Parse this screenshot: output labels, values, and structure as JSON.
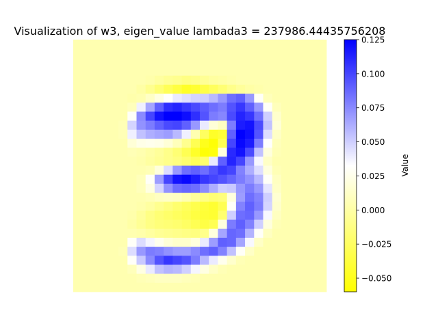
{
  "chart_data": {
    "type": "heatmap",
    "title": "Visualization of w3, eigen_value lambada3 = 237986.44435756208",
    "colorbar": {
      "label": "Value",
      "vmin": -0.06,
      "vmax": 0.125,
      "ticks": [
        -0.05,
        -0.025,
        0.0,
        0.025,
        0.05,
        0.075,
        0.1,
        0.125
      ],
      "tick_labels": [
        "−0.050",
        "−0.025",
        "0.000",
        "0.025",
        "0.050",
        "0.075",
        "0.100",
        "0.125"
      ],
      "colors": [
        "#ffff00",
        "#ffffff",
        "#0000ff"
      ]
    },
    "axes_visible": false,
    "grid": false,
    "rows": 28,
    "cols": 28,
    "values": [
      [
        0.004,
        0.004,
        0.004,
        0.004,
        0.004,
        0.004,
        0.004,
        0.004,
        0.004,
        0.004,
        0.004,
        0.004,
        0.004,
        0.004,
        0.004,
        0.004,
        0.004,
        0.004,
        0.004,
        0.004,
        0.004,
        0.004,
        0.004,
        0.004,
        0.004,
        0.004,
        0.004,
        0.004
      ],
      [
        0.004,
        0.004,
        0.004,
        0.004,
        0.004,
        0.004,
        0.004,
        0.004,
        0.004,
        0.004,
        0.004,
        0.004,
        0.004,
        0.004,
        0.004,
        0.004,
        0.004,
        0.004,
        0.004,
        0.004,
        0.004,
        0.004,
        0.004,
        0.004,
        0.004,
        0.004,
        0.004,
        0.004
      ],
      [
        0.004,
        0.004,
        0.004,
        0.004,
        0.004,
        0.004,
        0.004,
        0.004,
        0.004,
        0.004,
        0.004,
        0.004,
        0.004,
        0.004,
        0.004,
        0.004,
        0.004,
        0.004,
        0.004,
        0.004,
        0.004,
        0.004,
        0.004,
        0.004,
        0.004,
        0.004,
        0.004,
        0.004
      ],
      [
        0.004,
        0.004,
        0.004,
        0.004,
        0.004,
        0.004,
        0.004,
        0.004,
        0.004,
        0.004,
        0.004,
        0.004,
        0.004,
        0.004,
        0.004,
        0.004,
        0.004,
        0.004,
        0.004,
        0.004,
        0.004,
        0.004,
        0.004,
        0.004,
        0.004,
        0.004,
        0.004,
        0.004
      ],
      [
        0.004,
        0.004,
        0.004,
        0.004,
        0.004,
        0.004,
        0.004,
        0.004,
        0.002,
        -0.002,
        -0.006,
        -0.008,
        -0.012,
        -0.01,
        -0.006,
        -0.002,
        0.0,
        0.002,
        0.004,
        0.004,
        0.004,
        0.004,
        0.004,
        0.004,
        0.004,
        0.004,
        0.004,
        0.004
      ],
      [
        0.004,
        0.004,
        0.004,
        0.004,
        0.004,
        0.004,
        0.004,
        0.0,
        -0.008,
        -0.018,
        -0.028,
        -0.036,
        -0.045,
        -0.042,
        -0.034,
        -0.026,
        -0.018,
        -0.01,
        -0.004,
        0.0,
        0.002,
        0.004,
        0.004,
        0.004,
        0.004,
        0.004,
        0.004,
        0.004
      ],
      [
        0.004,
        0.004,
        0.004,
        0.004,
        0.004,
        0.004,
        0.002,
        0.004,
        0.012,
        0.022,
        0.032,
        0.04,
        0.044,
        0.048,
        0.05,
        0.058,
        0.07,
        0.085,
        0.09,
        0.07,
        0.03,
        0.008,
        0.004,
        0.004,
        0.004,
        0.004,
        0.004,
        0.004
      ],
      [
        0.004,
        0.004,
        0.004,
        0.004,
        0.004,
        0.004,
        0.008,
        0.038,
        0.065,
        0.09,
        0.108,
        0.112,
        0.105,
        0.098,
        0.092,
        0.085,
        0.08,
        0.095,
        0.105,
        0.09,
        0.07,
        0.03,
        0.008,
        0.004,
        0.004,
        0.004,
        0.004,
        0.004
      ],
      [
        0.004,
        0.004,
        0.004,
        0.004,
        0.004,
        0.004,
        0.03,
        0.075,
        0.1,
        0.118,
        0.125,
        0.125,
        0.12,
        0.108,
        0.095,
        0.08,
        0.076,
        0.098,
        0.112,
        0.105,
        0.085,
        0.05,
        0.014,
        0.004,
        0.004,
        0.004,
        0.004,
        0.004
      ],
      [
        0.004,
        0.004,
        0.004,
        0.004,
        0.004,
        0.006,
        0.048,
        0.072,
        0.08,
        0.09,
        0.098,
        0.1,
        0.09,
        0.07,
        0.04,
        0.018,
        0.01,
        0.08,
        0.115,
        0.118,
        0.098,
        0.055,
        0.018,
        0.004,
        0.004,
        0.004,
        0.004,
        0.004
      ],
      [
        0.004,
        0.004,
        0.004,
        0.004,
        0.004,
        0.006,
        0.038,
        0.055,
        0.062,
        0.065,
        0.068,
        0.058,
        0.038,
        0.004,
        -0.025,
        -0.045,
        -0.04,
        0.09,
        0.125,
        0.12,
        0.095,
        0.045,
        0.012,
        0.004,
        0.004,
        0.004,
        0.004,
        0.004
      ],
      [
        0.004,
        0.004,
        0.004,
        0.004,
        0.004,
        0.004,
        0.018,
        0.024,
        0.026,
        0.024,
        0.018,
        0.008,
        -0.008,
        -0.03,
        -0.05,
        -0.058,
        -0.03,
        0.1,
        0.122,
        0.115,
        0.08,
        0.032,
        0.008,
        0.004,
        0.004,
        0.004,
        0.004,
        0.004
      ],
      [
        0.004,
        0.004,
        0.004,
        0.004,
        0.004,
        0.004,
        0.006,
        0.004,
        0.0,
        -0.004,
        -0.01,
        -0.018,
        -0.03,
        -0.045,
        -0.058,
        -0.055,
        0.02,
        0.11,
        0.118,
        0.098,
        0.055,
        0.02,
        0.006,
        0.004,
        0.004,
        0.004,
        0.004,
        0.004
      ],
      [
        0.004,
        0.004,
        0.004,
        0.004,
        0.004,
        0.004,
        0.004,
        0.002,
        -0.002,
        -0.006,
        -0.01,
        -0.014,
        -0.02,
        -0.028,
        -0.02,
        0.04,
        0.09,
        0.112,
        0.1,
        0.07,
        0.035,
        0.012,
        0.004,
        0.004,
        0.004,
        0.004,
        0.004,
        0.004
      ],
      [
        0.004,
        0.004,
        0.004,
        0.004,
        0.004,
        0.004,
        0.004,
        0.004,
        0.006,
        0.02,
        0.045,
        0.07,
        0.085,
        0.09,
        0.085,
        0.095,
        0.105,
        0.1,
        0.078,
        0.062,
        0.045,
        0.02,
        0.006,
        0.004,
        0.004,
        0.004,
        0.004,
        0.004
      ],
      [
        0.004,
        0.004,
        0.004,
        0.004,
        0.004,
        0.004,
        0.004,
        0.008,
        0.03,
        0.068,
        0.1,
        0.118,
        0.122,
        0.115,
        0.105,
        0.1,
        0.095,
        0.088,
        0.08,
        0.072,
        0.058,
        0.03,
        0.01,
        0.004,
        0.004,
        0.004,
        0.004,
        0.004
      ],
      [
        0.004,
        0.004,
        0.004,
        0.004,
        0.004,
        0.004,
        0.004,
        0.008,
        0.022,
        0.048,
        0.072,
        0.085,
        0.088,
        0.085,
        0.075,
        0.062,
        0.05,
        0.052,
        0.07,
        0.08,
        0.07,
        0.042,
        0.012,
        0.004,
        0.004,
        0.004,
        0.004,
        0.004
      ],
      [
        0.004,
        0.004,
        0.004,
        0.004,
        0.004,
        0.004,
        0.004,
        0.004,
        0.006,
        0.01,
        0.012,
        0.01,
        0.004,
        -0.004,
        -0.012,
        -0.018,
        -0.015,
        0.02,
        0.068,
        0.085,
        0.078,
        0.05,
        0.016,
        0.004,
        0.004,
        0.004,
        0.004,
        0.004
      ],
      [
        0.004,
        0.004,
        0.004,
        0.004,
        0.004,
        0.004,
        0.004,
        0.002,
        -0.002,
        -0.008,
        -0.014,
        -0.02,
        -0.026,
        -0.032,
        -0.038,
        -0.042,
        -0.03,
        0.03,
        0.078,
        0.09,
        0.08,
        0.048,
        0.014,
        0.004,
        0.004,
        0.004,
        0.004,
        0.004
      ],
      [
        0.004,
        0.004,
        0.004,
        0.004,
        0.004,
        0.004,
        0.002,
        -0.004,
        -0.012,
        -0.018,
        -0.022,
        -0.026,
        -0.03,
        -0.036,
        -0.04,
        -0.042,
        -0.02,
        0.05,
        0.085,
        0.088,
        0.07,
        0.035,
        0.01,
        0.004,
        0.004,
        0.004,
        0.004,
        0.004
      ],
      [
        0.004,
        0.004,
        0.004,
        0.004,
        0.004,
        0.004,
        0.0,
        -0.006,
        -0.012,
        -0.016,
        -0.018,
        -0.02,
        -0.024,
        -0.03,
        -0.035,
        -0.03,
        0.02,
        0.08,
        0.09,
        0.078,
        0.05,
        0.02,
        0.006,
        0.004,
        0.004,
        0.004,
        0.004,
        0.004
      ],
      [
        0.004,
        0.004,
        0.004,
        0.004,
        0.004,
        0.004,
        0.004,
        0.002,
        -0.002,
        -0.006,
        -0.008,
        -0.01,
        -0.012,
        -0.014,
        -0.01,
        0.02,
        0.065,
        0.088,
        0.085,
        0.06,
        0.03,
        0.01,
        0.004,
        0.004,
        0.004,
        0.004,
        0.004,
        0.004
      ],
      [
        0.004,
        0.004,
        0.004,
        0.004,
        0.004,
        0.004,
        0.03,
        0.045,
        0.036,
        0.026,
        0.018,
        0.014,
        0.014,
        0.02,
        0.04,
        0.068,
        0.09,
        0.088,
        0.065,
        0.035,
        0.012,
        0.004,
        0.004,
        0.004,
        0.004,
        0.004,
        0.004,
        0.004
      ],
      [
        0.004,
        0.004,
        0.004,
        0.004,
        0.004,
        0.006,
        0.045,
        0.07,
        0.08,
        0.078,
        0.072,
        0.068,
        0.068,
        0.075,
        0.085,
        0.09,
        0.078,
        0.055,
        0.03,
        0.012,
        0.004,
        0.004,
        0.004,
        0.004,
        0.004,
        0.004,
        0.004,
        0.004
      ],
      [
        0.004,
        0.004,
        0.004,
        0.004,
        0.004,
        0.004,
        0.03,
        0.052,
        0.075,
        0.095,
        0.105,
        0.1,
        0.095,
        0.08,
        0.058,
        0.04,
        0.026,
        0.014,
        0.006,
        0.004,
        0.004,
        0.004,
        0.004,
        0.004,
        0.004,
        0.004,
        0.004,
        0.004
      ],
      [
        0.004,
        0.004,
        0.004,
        0.004,
        0.004,
        0.004,
        0.008,
        0.022,
        0.04,
        0.055,
        0.06,
        0.058,
        0.05,
        0.036,
        0.022,
        0.012,
        0.006,
        0.004,
        0.004,
        0.004,
        0.004,
        0.004,
        0.004,
        0.004,
        0.004,
        0.004,
        0.004,
        0.004
      ],
      [
        0.004,
        0.004,
        0.004,
        0.004,
        0.004,
        0.004,
        0.004,
        0.006,
        0.008,
        0.01,
        0.01,
        0.01,
        0.008,
        0.006,
        0.004,
        0.004,
        0.004,
        0.004,
        0.004,
        0.004,
        0.004,
        0.004,
        0.004,
        0.004,
        0.004,
        0.004,
        0.004,
        0.004
      ],
      [
        0.004,
        0.004,
        0.004,
        0.004,
        0.004,
        0.004,
        0.004,
        0.004,
        0.004,
        0.004,
        0.004,
        0.004,
        0.004,
        0.004,
        0.004,
        0.004,
        0.004,
        0.004,
        0.004,
        0.004,
        0.004,
        0.004,
        0.004,
        0.004,
        0.004,
        0.004,
        0.004,
        0.004
      ]
    ]
  }
}
